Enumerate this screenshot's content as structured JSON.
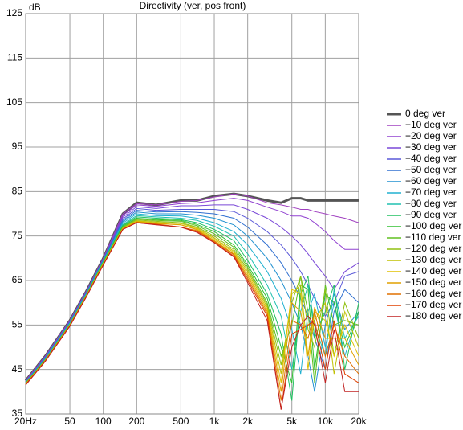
{
  "chart_data": {
    "type": "line",
    "title": "Directivity (ver, pos front)",
    "y_label": "dB",
    "log_x": true,
    "grid": true,
    "legend": "right",
    "xlim": [
      20,
      20000
    ],
    "ylim": [
      35,
      125
    ],
    "xticks": [
      {
        "value": 20,
        "label": "20Hz"
      },
      50,
      100,
      200,
      500,
      {
        "value": 1000,
        "label": "1k"
      },
      {
        "value": 2000,
        "label": "2k"
      },
      {
        "value": 5000,
        "label": "5k"
      },
      {
        "value": 10000,
        "label": "10k"
      },
      {
        "value": 20000,
        "label": "20k"
      }
    ],
    "yticks": [
      35,
      45,
      55,
      65,
      75,
      85,
      95,
      105,
      115,
      125
    ],
    "x": [
      20,
      30,
      50,
      70,
      100,
      150,
      200,
      300,
      500,
      700,
      1000,
      1500,
      2000,
      3000,
      4000,
      5000,
      6000,
      7000,
      8000,
      10000,
      12000,
      15000,
      20000
    ],
    "series": [
      {
        "name": "0 deg ver",
        "color": "#555555",
        "values": [
          42.5,
          48,
          56,
          62.5,
          70,
          80,
          82.5,
          82,
          83,
          83,
          84,
          84.5,
          84,
          83,
          82.5,
          83.5,
          83.5,
          83,
          83,
          83,
          83,
          83,
          83
        ]
      },
      {
        "name": "+10 deg ver",
        "color": "#a040c0",
        "values": [
          42.5,
          48,
          56,
          62.5,
          70,
          80,
          82.3,
          82,
          82.8,
          83,
          83.8,
          84.5,
          84,
          82.5,
          82,
          81.5,
          81,
          81,
          80.5,
          80,
          79.5,
          79,
          78
        ]
      },
      {
        "name": "+20 deg ver",
        "color": "#9040d0",
        "values": [
          42.4,
          47.9,
          55.9,
          62.4,
          69.9,
          79.6,
          82,
          81.7,
          82.3,
          82.5,
          83,
          83.5,
          83,
          81.5,
          80.5,
          79.5,
          79.5,
          79,
          78,
          76,
          74,
          72,
          72
        ]
      },
      {
        "name": "+30 deg ver",
        "color": "#7a48d8",
        "values": [
          42.3,
          47.8,
          55.8,
          62.3,
          69.8,
          79.2,
          81.6,
          81.2,
          81.8,
          81.8,
          82,
          82,
          81,
          79,
          77,
          75,
          73,
          71,
          69,
          66,
          63,
          67,
          69
        ]
      },
      {
        "name": "+40 deg ver",
        "color": "#5a58d8",
        "values": [
          42.2,
          47.7,
          55.7,
          62.2,
          69.7,
          78.8,
          81.2,
          80.8,
          81,
          81,
          81,
          80.5,
          79,
          76,
          73,
          70,
          67,
          64,
          61,
          57,
          60,
          66,
          67
        ]
      },
      {
        "name": "+50 deg ver",
        "color": "#3070d0",
        "values": [
          42.2,
          47.6,
          55.6,
          62.1,
          69.6,
          78.5,
          80.8,
          80.4,
          80.5,
          80.3,
          80,
          79,
          77,
          73,
          69,
          65,
          61,
          57,
          52,
          45,
          58,
          63,
          60
        ]
      },
      {
        "name": "+60 deg ver",
        "color": "#2090d0",
        "values": [
          42.1,
          47.5,
          55.5,
          62,
          69.5,
          78.2,
          80.4,
          80,
          80,
          79.7,
          79,
          77.5,
          75,
          70,
          65,
          60,
          55,
          48,
          40,
          55,
          62,
          54,
          58
        ]
      },
      {
        "name": "+70 deg ver",
        "color": "#20b0d0",
        "values": [
          42.1,
          47.4,
          55.4,
          61.9,
          69.4,
          77.9,
          80,
          79.6,
          79.5,
          79,
          78,
          76,
          73,
          67,
          61,
          54,
          44,
          58,
          62,
          50,
          60,
          48,
          58
        ]
      },
      {
        "name": "+80 deg ver",
        "color": "#20c0b0",
        "values": [
          42,
          47.3,
          55.3,
          61.8,
          69.3,
          77.6,
          79.6,
          79.3,
          79,
          78.5,
          77.2,
          75,
          71,
          64,
          57,
          45,
          58,
          64,
          55,
          48,
          63,
          52,
          57
        ]
      },
      {
        "name": "+90 deg ver",
        "color": "#20c060",
        "values": [
          42,
          47.2,
          55.2,
          61.7,
          69.2,
          77.4,
          79.3,
          79,
          78.7,
          78,
          76.5,
          74,
          69.5,
          62,
          53,
          38,
          62,
          66,
          52,
          58,
          64,
          45,
          60
        ]
      },
      {
        "name": "+100 deg ver",
        "color": "#30c030",
        "values": [
          41.9,
          47.2,
          55.1,
          61.6,
          69.1,
          77.2,
          79,
          78.7,
          78.5,
          77.6,
          76,
          73,
          68.5,
          61,
          50,
          42,
          64,
          63,
          45,
          62,
          60,
          50,
          58
        ]
      },
      {
        "name": "+110 deg ver",
        "color": "#60c020",
        "values": [
          41.9,
          47.1,
          55.1,
          61.6,
          69,
          77,
          78.8,
          78.5,
          78.3,
          77.3,
          75.5,
          72.5,
          68,
          60,
          48,
          55,
          66,
          58,
          42,
          64,
          55,
          56,
          55
        ]
      },
      {
        "name": "+120 deg ver",
        "color": "#90c010",
        "values": [
          41.8,
          47.1,
          55,
          61.5,
          68.9,
          76.9,
          78.6,
          78.3,
          78,
          77,
          75,
          72,
          67.5,
          59.5,
          46,
          60,
          66,
          54,
          50,
          63,
          48,
          60,
          52
        ]
      },
      {
        "name": "+130 deg ver",
        "color": "#c0c000",
        "values": [
          41.8,
          47,
          55,
          61.5,
          68.8,
          76.8,
          78.4,
          78.1,
          77.8,
          76.8,
          74.6,
          71.6,
          67,
          59,
          44,
          62,
          64,
          48,
          56,
          60,
          44,
          58,
          50
        ]
      },
      {
        "name": "+140 deg ver",
        "color": "#e0c000",
        "values": [
          41.7,
          47,
          54.9,
          61.4,
          68.7,
          76.7,
          78.3,
          77.9,
          77.5,
          76.6,
          74.3,
          71.3,
          66.5,
          58.5,
          42,
          63,
          62,
          45,
          58,
          56,
          48,
          55,
          48
        ]
      },
      {
        "name": "+150 deg ver",
        "color": "#e0a000",
        "values": [
          41.7,
          47,
          54.9,
          61.4,
          68.6,
          76.6,
          78.2,
          77.8,
          77.5,
          76.4,
          74,
          71,
          66,
          58,
          40,
          60,
          58,
          48,
          59,
          52,
          52,
          52,
          46
        ]
      },
      {
        "name": "+160 deg ver",
        "color": "#e07000",
        "values": [
          41.6,
          46.9,
          54.8,
          61.3,
          68.6,
          76.5,
          78.1,
          77.7,
          77,
          76.2,
          73.8,
          70.8,
          65.5,
          57.5,
          38,
          56,
          55,
          52,
          58,
          48,
          55,
          48,
          44
        ]
      },
      {
        "name": "+170 deg ver",
        "color": "#e04000",
        "values": [
          41.6,
          46.9,
          54.8,
          61.3,
          68.5,
          76.5,
          78,
          77.6,
          77,
          76,
          73.6,
          70.5,
          65,
          57,
          36,
          53,
          54,
          55,
          56,
          45,
          56,
          44,
          42
        ]
      },
      {
        "name": "+180 deg ver",
        "color": "#c02020",
        "values": [
          41.5,
          46.8,
          54.7,
          61.2,
          68.5,
          76.5,
          78,
          77.5,
          77,
          75.8,
          73.5,
          70.3,
          64.5,
          56,
          36,
          50,
          55,
          57,
          55,
          42,
          54,
          40,
          40
        ]
      }
    ]
  }
}
